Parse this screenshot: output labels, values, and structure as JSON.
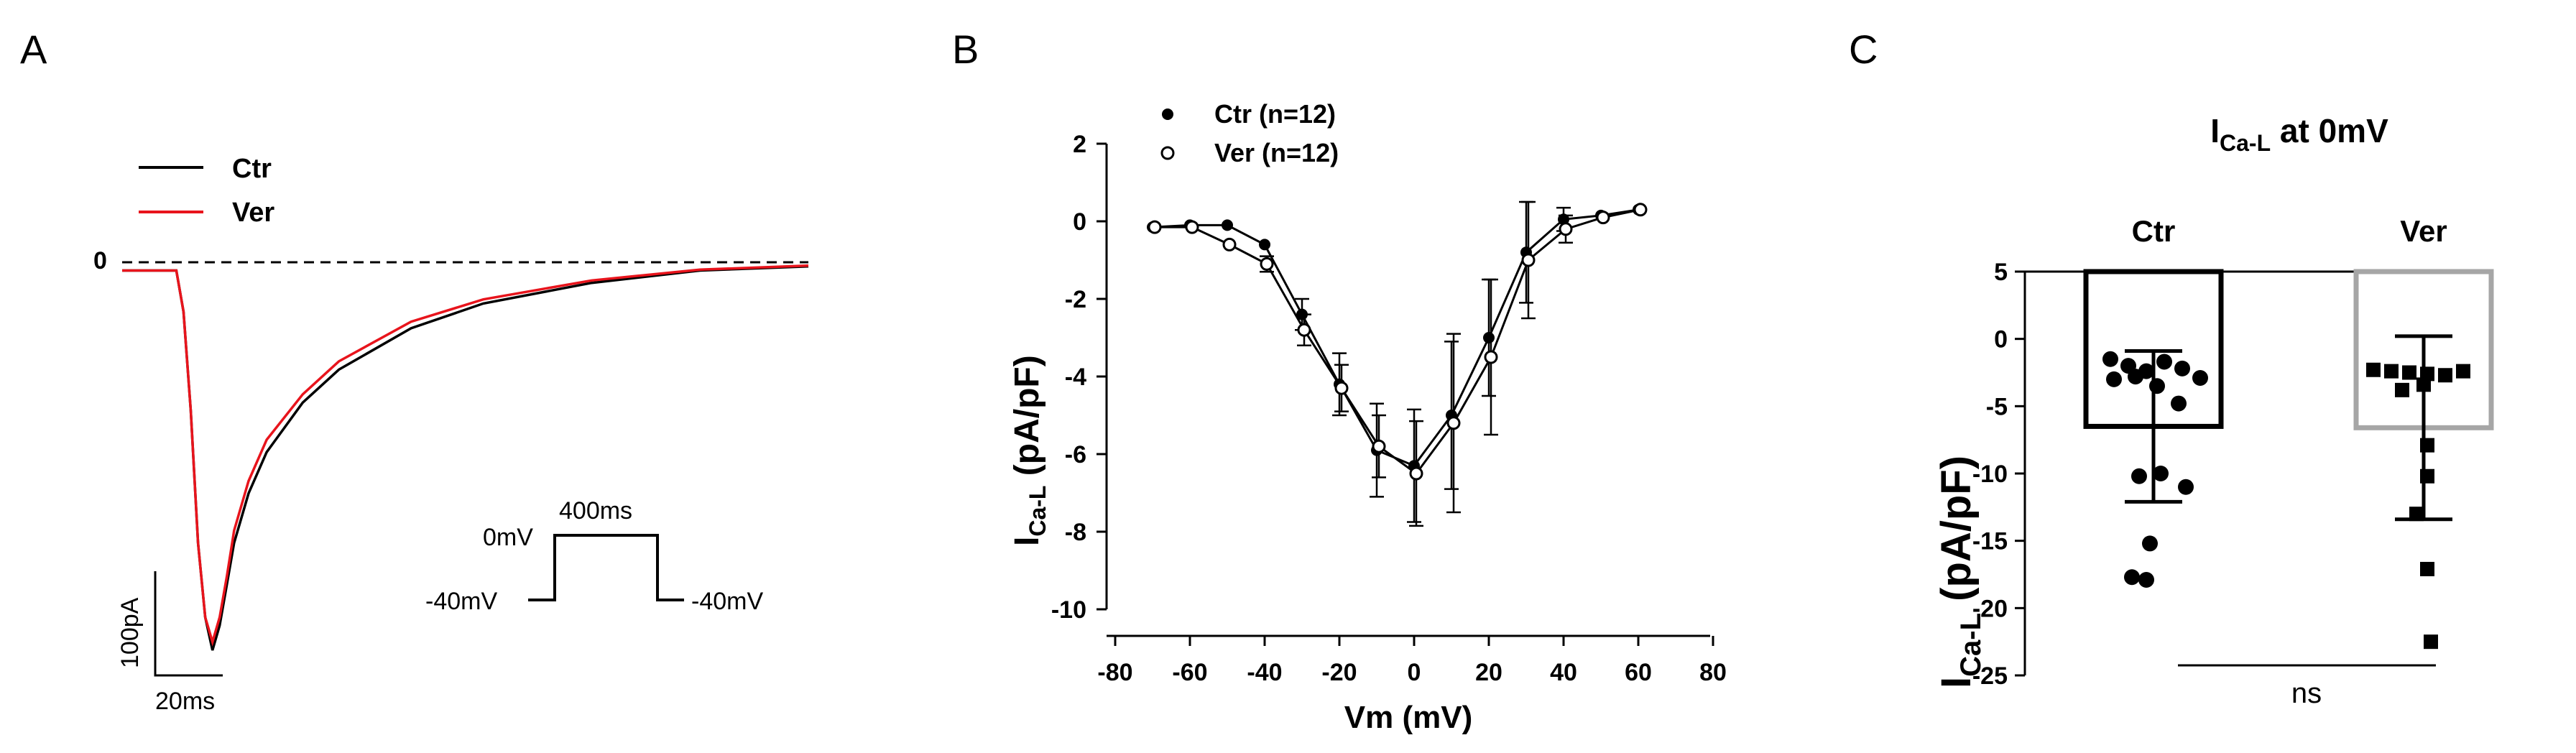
{
  "panel_labels": {
    "a": "A",
    "b": "B",
    "c": "C"
  },
  "colors": {
    "ctr": "#000000",
    "ver": "#e8141c",
    "ver_bar": "#a6a6a6",
    "axis": "#000000"
  },
  "chart_data": [
    {
      "panel": "A",
      "type": "line",
      "legend": [
        "Ctr",
        "Ver"
      ],
      "zero_label": "0",
      "scale_bar": {
        "y_label": "100pA",
        "x_label": "20ms"
      },
      "protocol": {
        "hold_left": "-40mV",
        "step": "0mV",
        "duration": "400ms",
        "hold_right": "-40mV"
      },
      "series": [
        {
          "name": "Ctr",
          "t": [
            0,
            5,
            10,
            15,
            17,
            19,
            21,
            23,
            25,
            27,
            29,
            31,
            35,
            40,
            50,
            60,
            80,
            100,
            130,
            160,
            190
          ],
          "i": [
            -10,
            -10,
            -10,
            -10,
            -60,
            -180,
            -340,
            -430,
            -470,
            -440,
            -390,
            -340,
            -280,
            -230,
            -170,
            -130,
            -80,
            -50,
            -25,
            -10,
            -5
          ]
        },
        {
          "name": "Ver",
          "t": [
            0,
            5,
            10,
            15,
            17,
            19,
            21,
            23,
            25,
            27,
            29,
            31,
            35,
            40,
            50,
            60,
            80,
            100,
            130,
            160,
            190
          ],
          "i": [
            -10,
            -10,
            -10,
            -10,
            -60,
            -180,
            -340,
            -430,
            -460,
            -430,
            -380,
            -325,
            -265,
            -215,
            -160,
            -120,
            -72,
            -45,
            -22,
            -9,
            -4
          ]
        }
      ],
      "xlim": [
        0,
        190
      ],
      "ylim": [
        -480,
        20
      ]
    },
    {
      "panel": "B",
      "type": "line",
      "xlabel": "Vm (mV)",
      "ylabel_main": "I",
      "ylabel_sub": "Ca-L",
      "ylabel_rest": " (pA/pF)",
      "xlim": [
        -80,
        80
      ],
      "ylim": [
        -10,
        2
      ],
      "xticks": [
        -80,
        -60,
        -40,
        -20,
        0,
        20,
        40,
        60,
        80
      ],
      "yticks": [
        2,
        0,
        -2,
        -4,
        -6,
        -8,
        -10
      ],
      "categories": [
        -70,
        -60,
        -50,
        -40,
        -30,
        -20,
        -10,
        0,
        10,
        20,
        30,
        40,
        50,
        60
      ],
      "series": [
        {
          "name": "Ctr (n=12)",
          "marker": "filled",
          "values": [
            -0.15,
            -0.1,
            -0.1,
            -0.6,
            -2.4,
            -4.2,
            -5.9,
            -6.3,
            -5.0,
            -3.0,
            -0.8,
            0.05,
            0.15,
            0.3
          ],
          "errors": [
            0.05,
            0.05,
            0.05,
            0.1,
            0.4,
            0.8,
            1.2,
            1.45,
            1.9,
            1.5,
            1.3,
            0.3,
            0.1,
            0.1
          ]
        },
        {
          "name": "Ver (n=12)",
          "marker": "open",
          "values": [
            -0.15,
            -0.15,
            -0.6,
            -1.1,
            -2.8,
            -4.3,
            -5.8,
            -6.5,
            -5.2,
            -3.5,
            -1.0,
            -0.2,
            0.1,
            0.3
          ],
          "errors": [
            0.05,
            0.05,
            0.1,
            0.2,
            0.4,
            0.6,
            0.8,
            1.35,
            2.3,
            2.0,
            1.5,
            0.35,
            0.1,
            0.1
          ]
        }
      ]
    },
    {
      "panel": "C",
      "type": "bar",
      "title_main": "I",
      "title_sub": "Ca-L",
      "title_rest": " at 0mV",
      "ylabel_main": "I",
      "ylabel_sub": "Ca-L",
      "ylabel_rest": " (pA/pF)",
      "ylim": [
        -25,
        5
      ],
      "yticks": [
        5,
        0,
        -5,
        -10,
        -15,
        -20,
        -25
      ],
      "categories": [
        "Ctr",
        "Ver"
      ],
      "values": [
        -6.5,
        -6.6
      ],
      "errors": [
        5.6,
        6.8
      ],
      "significance": "ns",
      "points": [
        [
          -1.5,
          -2.0,
          -2.4,
          -1.7,
          -2.2,
          -2.9,
          -3.0,
          -2.8,
          -3.5,
          -4.8,
          -10.2,
          -10.0,
          -11.0,
          -15.2,
          -17.7,
          -17.9
        ],
        [
          -2.3,
          -2.4,
          -2.5,
          -2.6,
          -2.7,
          -2.4,
          -3.8,
          -3.4,
          -7.9,
          -10.2,
          -13.0,
          -17.1,
          -22.5
        ]
      ]
    }
  ]
}
